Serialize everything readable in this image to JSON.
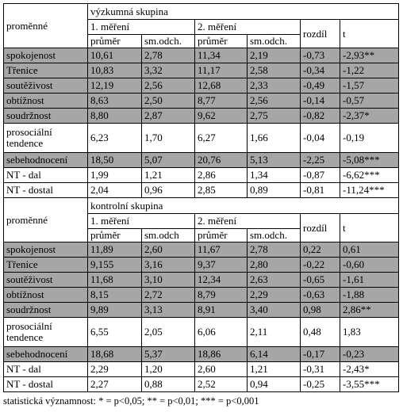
{
  "sections": [
    {
      "variable_header": "proměnné",
      "group": "výzkumná skupina",
      "measure1": "1. měření",
      "measure2": "2. měření",
      "mean1": "průměr",
      "sd1": "sm.odch.",
      "mean2": "průměr",
      "sd2": "sm.odch.",
      "diff": "rozdíl",
      "t": "t",
      "rows": [
        {
          "label": "spokojenost",
          "cells": [
            "10,61",
            "2,78",
            "11,34",
            "2,19",
            "-0,73",
            "-2,93**"
          ],
          "shaded": true
        },
        {
          "label": "Třenice",
          "cells": [
            "10,83",
            "3,32",
            "11,17",
            "2,58",
            "-0,34",
            "-1,22"
          ],
          "shaded": true
        },
        {
          "label": "soutěživost",
          "cells": [
            "12,19",
            "2,56",
            "12,68",
            "2,33",
            "-0,49",
            "-1,57"
          ],
          "shaded": true
        },
        {
          "label": "obtížnost",
          "cells": [
            "8,63",
            "2,50",
            "8,77",
            "2,56",
            "-0,14",
            "-0,57"
          ],
          "shaded": true
        },
        {
          "label": "soudržnost",
          "cells": [
            "8,80",
            "2,87",
            "9,62",
            "2,75",
            "-0,82",
            "-2,37*"
          ],
          "shaded": true
        },
        {
          "label": "prosociální tendence",
          "cells": [
            "6,23",
            "1,70",
            "6,27",
            "1,66",
            "-0,04",
            "-0,19"
          ],
          "shaded": false
        },
        {
          "label": "sebehodnocení",
          "cells": [
            "18,50",
            "5,07",
            "20,76",
            "5,13",
            "-2,25",
            "-5,08***"
          ],
          "shaded": true
        },
        {
          "label": "NT - dal",
          "cells": [
            "1,99",
            "1,21",
            "2,86",
            "1,34",
            "-0,87",
            "-6,62***"
          ],
          "shaded": false
        },
        {
          "label": "NT - dostal",
          "cells": [
            "2,04",
            "0,96",
            "2,85",
            "0,89",
            "-0,81",
            "-11,24***"
          ],
          "shaded": false
        }
      ]
    },
    {
      "variable_header": "proměnné",
      "group": "kontrolní skupina",
      "measure1": "1. měření",
      "measure2": "2. měření",
      "mean1": "průměr",
      "sd1": "sm.odch",
      "mean2": "průměr",
      "sd2": "sm.odch.",
      "diff": "rozdíl",
      "t": "t",
      "rows": [
        {
          "label": "spokojenost",
          "cells": [
            "11,89",
            "2,60",
            "11,67",
            "2,78",
            "0,22",
            "0,61"
          ],
          "shaded": true
        },
        {
          "label": "Třenice",
          "cells": [
            "9,155",
            "3,16",
            "9,37",
            "2,80",
            "-0,22",
            "-0,60"
          ],
          "shaded": true
        },
        {
          "label": "soutěživost",
          "cells": [
            "11,68",
            "3,10",
            "12,34",
            "2,63",
            "-0,65",
            "-1,61"
          ],
          "shaded": true
        },
        {
          "label": "obtížnost",
          "cells": [
            "8,15",
            "2,72",
            "8,79",
            "2,29",
            "-0,63",
            "-1,88"
          ],
          "shaded": true
        },
        {
          "label": "soudržnost",
          "cells": [
            "9,89",
            "3,13",
            "8,91",
            "3,40",
            "0,98",
            "2,86**"
          ],
          "shaded": true
        },
        {
          "label": "prosociální tendence",
          "cells": [
            "6,55",
            "2,05",
            "6,06",
            "2,11",
            "0,48",
            "1,83"
          ],
          "shaded": false
        },
        {
          "label": "sebehodnocení",
          "cells": [
            "18,68",
            "5,37",
            "18,86",
            "6,14",
            "-0,17",
            "-0,23"
          ],
          "shaded": true
        },
        {
          "label": "NT - dal",
          "cells": [
            "2,29",
            "1,20",
            "2,60",
            "1,21",
            "-0,31",
            "-2,43*"
          ],
          "shaded": false
        },
        {
          "label": "NT - dostal",
          "cells": [
            "2,27",
            "0,88",
            "2,52",
            "0,94",
            "-0,25",
            "-3,55***"
          ],
          "shaded": false
        }
      ]
    }
  ],
  "footnote": "statistická významnost: * = p<0,05;   ** = p<0,01;   *** = p<0,001"
}
